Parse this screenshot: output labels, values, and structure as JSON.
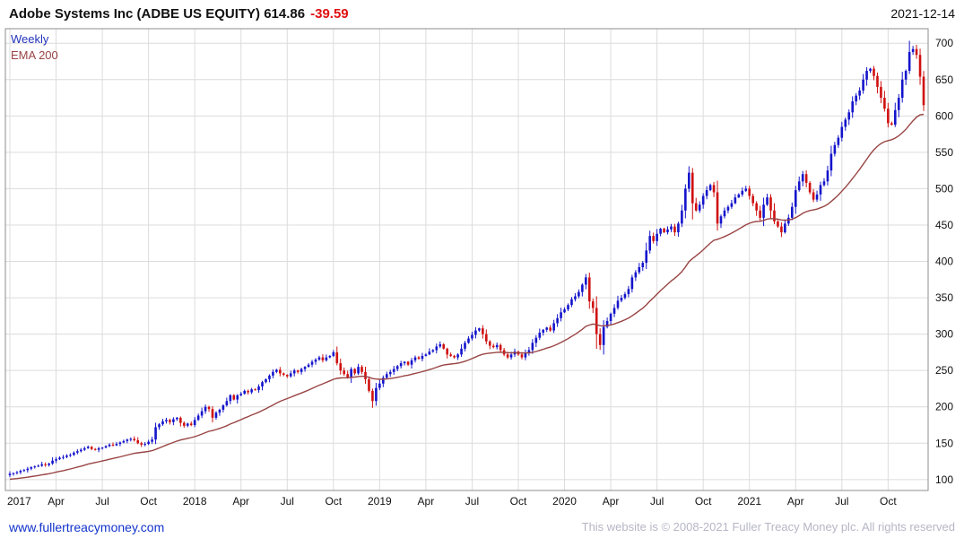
{
  "header": {
    "title": "Adobe Systems Inc (ADBE US EQUITY) 614.86",
    "change": "-39.59",
    "date": "2021-12-14"
  },
  "legend": {
    "timeframe": "Weekly",
    "ema": "EMA 200"
  },
  "footer": {
    "site": "www.fullertreacymoney.com",
    "copyright": "This website is © 2008-2021 Fuller Treacy Money plc. All rights reserved"
  },
  "colors": {
    "up": "#1414cc",
    "down": "#d01010",
    "ema": "#994444",
    "grid": "#dcdcdc",
    "border": "#8c8c8c",
    "axis_text": "#111111"
  },
  "chart_data": {
    "type": "candlestick",
    "title": "Adobe Systems Inc (ADBE US EQUITY)",
    "timeframe": "Weekly",
    "last_close": 614.86,
    "change": -39.59,
    "as_of": "2021-12-14",
    "overlay": {
      "label": "EMA 200",
      "ema_span_weeks": 35,
      "ema_start": 100
    },
    "ylim": [
      85,
      720
    ],
    "y_ticks": [
      100,
      150,
      200,
      250,
      300,
      350,
      400,
      450,
      500,
      550,
      600,
      650,
      700
    ],
    "x_ticks": [
      {
        "week": 0,
        "label": "2017"
      },
      {
        "week": 13,
        "label": "Apr"
      },
      {
        "week": 26,
        "label": "Jul"
      },
      {
        "week": 39,
        "label": "Oct"
      },
      {
        "week": 52,
        "label": "2018"
      },
      {
        "week": 65,
        "label": "Apr"
      },
      {
        "week": 78,
        "label": "Jul"
      },
      {
        "week": 91,
        "label": "Oct"
      },
      {
        "week": 104,
        "label": "2019"
      },
      {
        "week": 117,
        "label": "Apr"
      },
      {
        "week": 130,
        "label": "Jul"
      },
      {
        "week": 143,
        "label": "Oct"
      },
      {
        "week": 156,
        "label": "2020"
      },
      {
        "week": 169,
        "label": "Apr"
      },
      {
        "week": 182,
        "label": "Jul"
      },
      {
        "week": 195,
        "label": "Oct"
      },
      {
        "week": 208,
        "label": "2021"
      },
      {
        "week": 221,
        "label": "Apr"
      },
      {
        "week": 234,
        "label": "Jul"
      },
      {
        "week": 247,
        "label": "Oct"
      }
    ],
    "start_open": 106,
    "weekly_closes": [
      108,
      109,
      110,
      112,
      113,
      115,
      117,
      118,
      119,
      121,
      120,
      122,
      126,
      128,
      130,
      131,
      133,
      134,
      137,
      139,
      141,
      143,
      145,
      142,
      141,
      143,
      144,
      146,
      148,
      147,
      149,
      151,
      153,
      155,
      156,
      154,
      150,
      148,
      149,
      152,
      155,
      172,
      176,
      180,
      182,
      179,
      183,
      185,
      178,
      174,
      177,
      175,
      182,
      188,
      194,
      200,
      197,
      185,
      192,
      196,
      202,
      208,
      216,
      210,
      216,
      218,
      222,
      220,
      224,
      223,
      228,
      234,
      238,
      243,
      248,
      251,
      246,
      244,
      242,
      246,
      250,
      248,
      252,
      255,
      258,
      262,
      265,
      268,
      264,
      268,
      270,
      275,
      260,
      250,
      245,
      240,
      252,
      246,
      255,
      248,
      238,
      222,
      208,
      226,
      232,
      240,
      245,
      248,
      252,
      256,
      260,
      262,
      258,
      264,
      268,
      266,
      270,
      272,
      276,
      278,
      283,
      286,
      280,
      272,
      270,
      268,
      272,
      280,
      288,
      294,
      299,
      305,
      308,
      300,
      290,
      284,
      282,
      285,
      278,
      272,
      268,
      272,
      276,
      272,
      268,
      274,
      278,
      288,
      295,
      302,
      306,
      309,
      305,
      315,
      322,
      330,
      334,
      340,
      348,
      352,
      358,
      368,
      378,
      345,
      336,
      300,
      285,
      310,
      318,
      328,
      336,
      346,
      350,
      355,
      362,
      378,
      385,
      392,
      398,
      415,
      435,
      428,
      438,
      445,
      440,
      444,
      448,
      440,
      452,
      470,
      500,
      522,
      480,
      470,
      478,
      490,
      498,
      505,
      495,
      452,
      462,
      470,
      475,
      480,
      488,
      492,
      497,
      500,
      490,
      480,
      470,
      460,
      478,
      488,
      470,
      455,
      448,
      440,
      452,
      460,
      475,
      498,
      510,
      520,
      508,
      495,
      485,
      492,
      505,
      510,
      525,
      548,
      560,
      570,
      585,
      595,
      605,
      620,
      628,
      635,
      650,
      662,
      665,
      655,
      640,
      625,
      610,
      590,
      588,
      608,
      625,
      650,
      662,
      688,
      692,
      684,
      654,
      614.86
    ]
  }
}
